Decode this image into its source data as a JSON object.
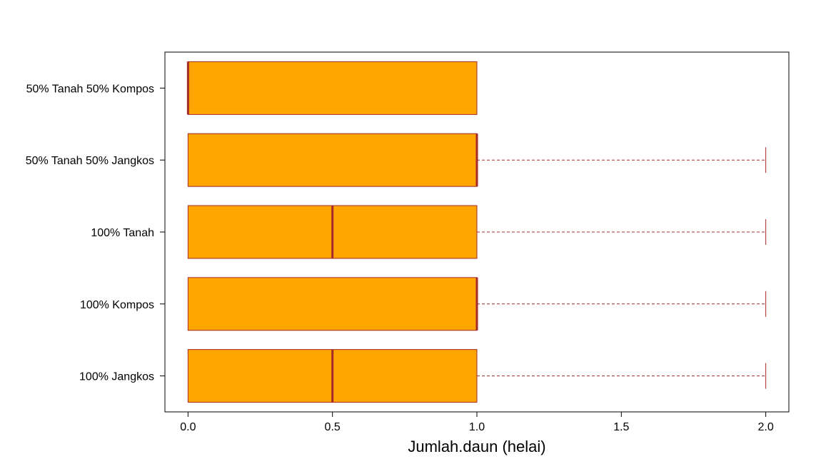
{
  "chart_data": {
    "type": "boxplot",
    "orientation": "horizontal",
    "title": "",
    "xlabel": "Jumlah.daun (helai)",
    "ylabel": "",
    "xlim": [
      -0.08,
      2.08
    ],
    "x_ticks": [
      0.0,
      0.5,
      1.0,
      1.5,
      2.0
    ],
    "x_tick_labels": [
      "0.0",
      "0.5",
      "1.0",
      "1.5",
      "2.0"
    ],
    "grid": false,
    "colors": {
      "box_fill": "#FFA500",
      "box_border": "#A52A2A",
      "median": "#A52A2A",
      "whisker": "#A52A2A",
      "frame": "#000000"
    },
    "categories": [
      "100% Jangkos",
      "100% Kompos",
      "100% Tanah",
      "50% Tanah 50% Jangkos",
      "50% Tanah 50% Kompos"
    ],
    "boxes": [
      {
        "label": "100% Jangkos",
        "min": 0.0,
        "q1": 0.0,
        "median": 0.5,
        "q3": 1.0,
        "max": 2.0
      },
      {
        "label": "100% Kompos",
        "min": 0.0,
        "q1": 0.0,
        "median": 1.0,
        "q3": 1.0,
        "max": 2.0
      },
      {
        "label": "100% Tanah",
        "min": 0.0,
        "q1": 0.0,
        "median": 0.5,
        "q3": 1.0,
        "max": 2.0
      },
      {
        "label": "50% Tanah 50% Jangkos",
        "min": 0.0,
        "q1": 0.0,
        "median": 1.0,
        "q3": 1.0,
        "max": 2.0
      },
      {
        "label": "50% Tanah 50% Kompos",
        "min": 0.0,
        "q1": 0.0,
        "median": 0.0,
        "q3": 1.0,
        "max": 1.0
      }
    ]
  }
}
